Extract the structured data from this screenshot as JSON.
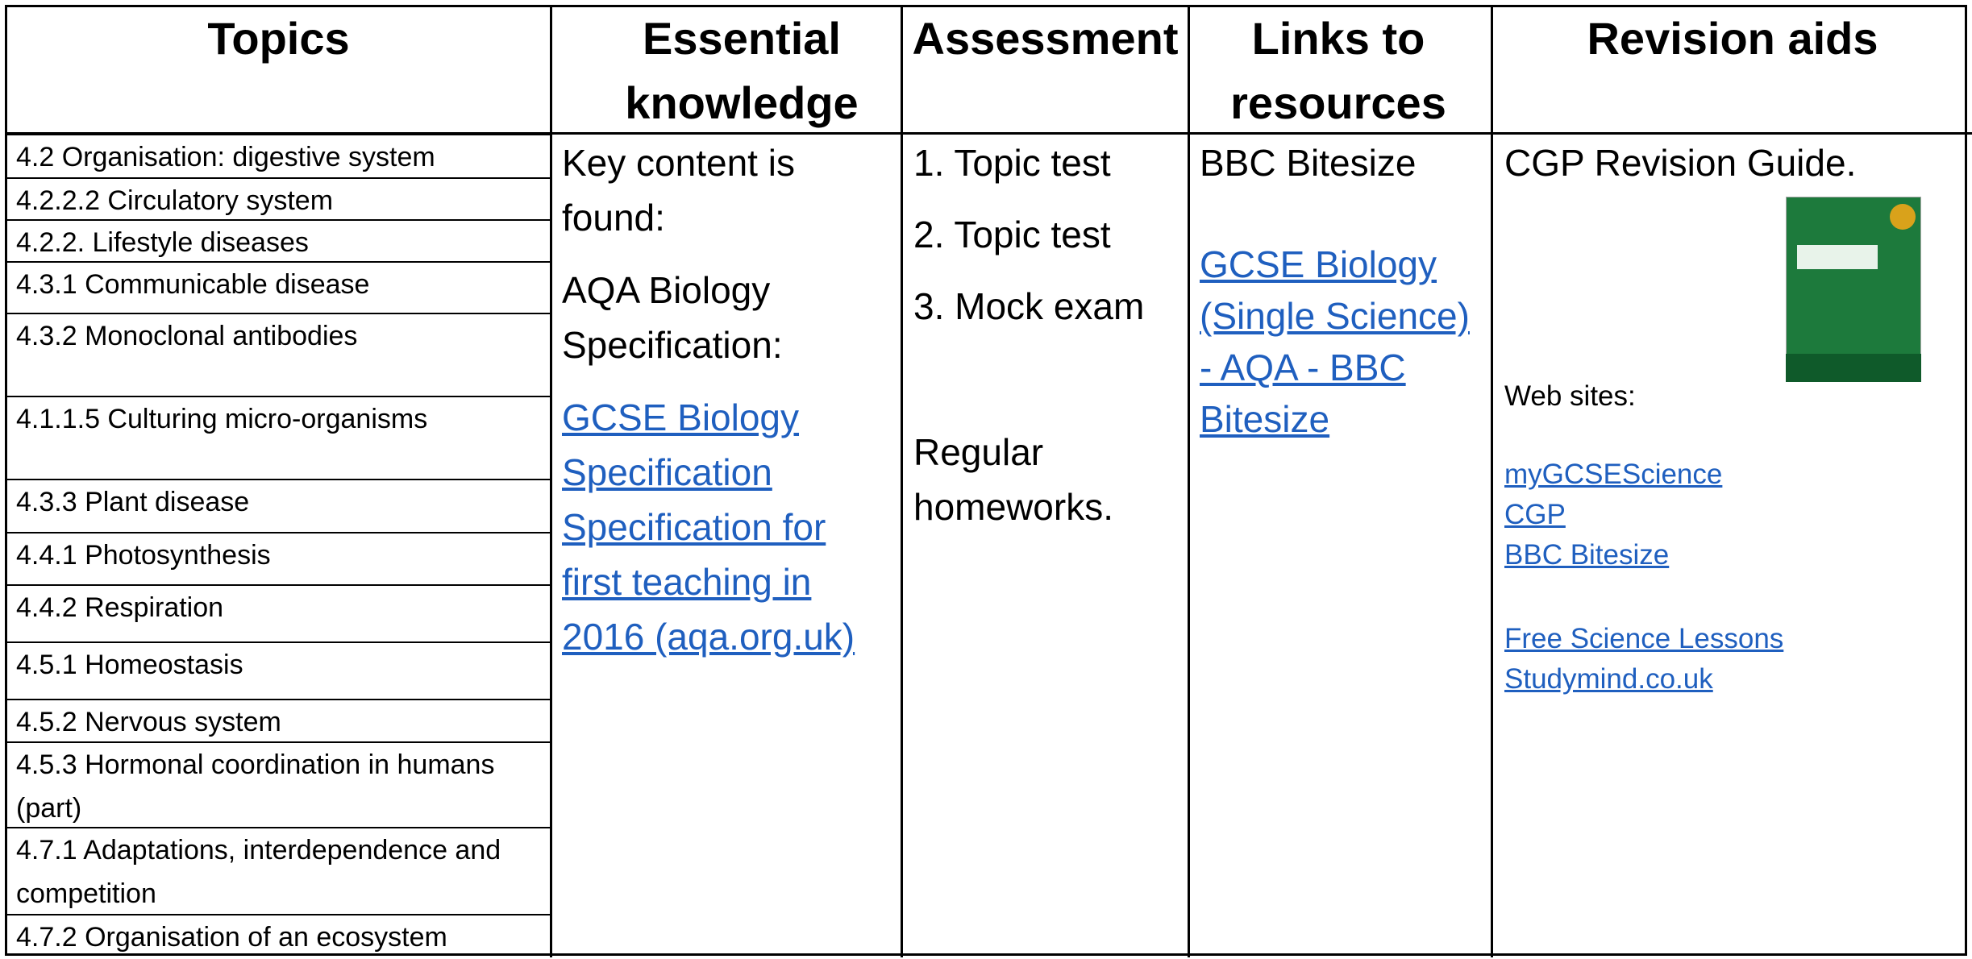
{
  "header": {
    "columns": [
      "Topics",
      "Essential knowledge",
      "Assessment",
      "Links to resources",
      "Revision aids"
    ]
  },
  "topics": [
    "4.2 Organisation: digestive system",
    "4.2.2.2 Circulatory system",
    "4.2.2. Lifestyle diseases",
    "4.3.1 Communicable disease",
    "4.3.2 Monoclonal antibodies",
    "4.1.1.5 Culturing micro-organisms",
    "4.3.3 Plant disease",
    "4.4.1 Photosynthesis",
    "4.4.2 Respiration",
    "4.5.1 Homeostasis",
    "4.5.2 Nervous system",
    "4.5.3 Hormonal coordination in humans (part)",
    "4.7.1 Adaptations, interdependence and competition",
    "4.7.2 Organisation of an ecosystem"
  ],
  "essential": {
    "intro": "Key content is found:",
    "source": "AQA Biology Specification:",
    "link": "GCSE Biology Specification Specification for first teaching in 2016 (aqa.org.uk)"
  },
  "assessment": {
    "items": [
      "1. Topic test",
      "2. Topic test",
      "3. Mock exam"
    ],
    "note": "Regular homeworks."
  },
  "links": {
    "label": "BBC Bitesize",
    "link": "GCSE Biology (Single Science) - AQA - BBC Bitesize"
  },
  "revision": {
    "guide": "CGP Revision Guide.",
    "websites_label": "Web sites:",
    "websites": [
      "myGCSEScience",
      "CGP",
      "BBC Bitesize"
    ],
    "more_websites": [
      "Free Science Lessons",
      "Studymind.co.uk"
    ]
  }
}
